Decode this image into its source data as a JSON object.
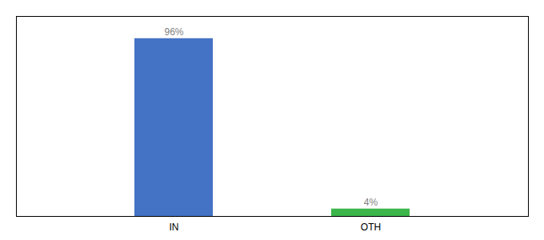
{
  "chart_data": {
    "type": "bar",
    "categories": [
      "IN",
      "OTH"
    ],
    "values": [
      96,
      4
    ],
    "value_labels": [
      "96%",
      "4%"
    ],
    "colors": [
      "#4472C4",
      "#3CB54A"
    ],
    "ylim": [
      0,
      108
    ],
    "data_labels": true,
    "tick_labels": "x",
    "grid": false
  }
}
